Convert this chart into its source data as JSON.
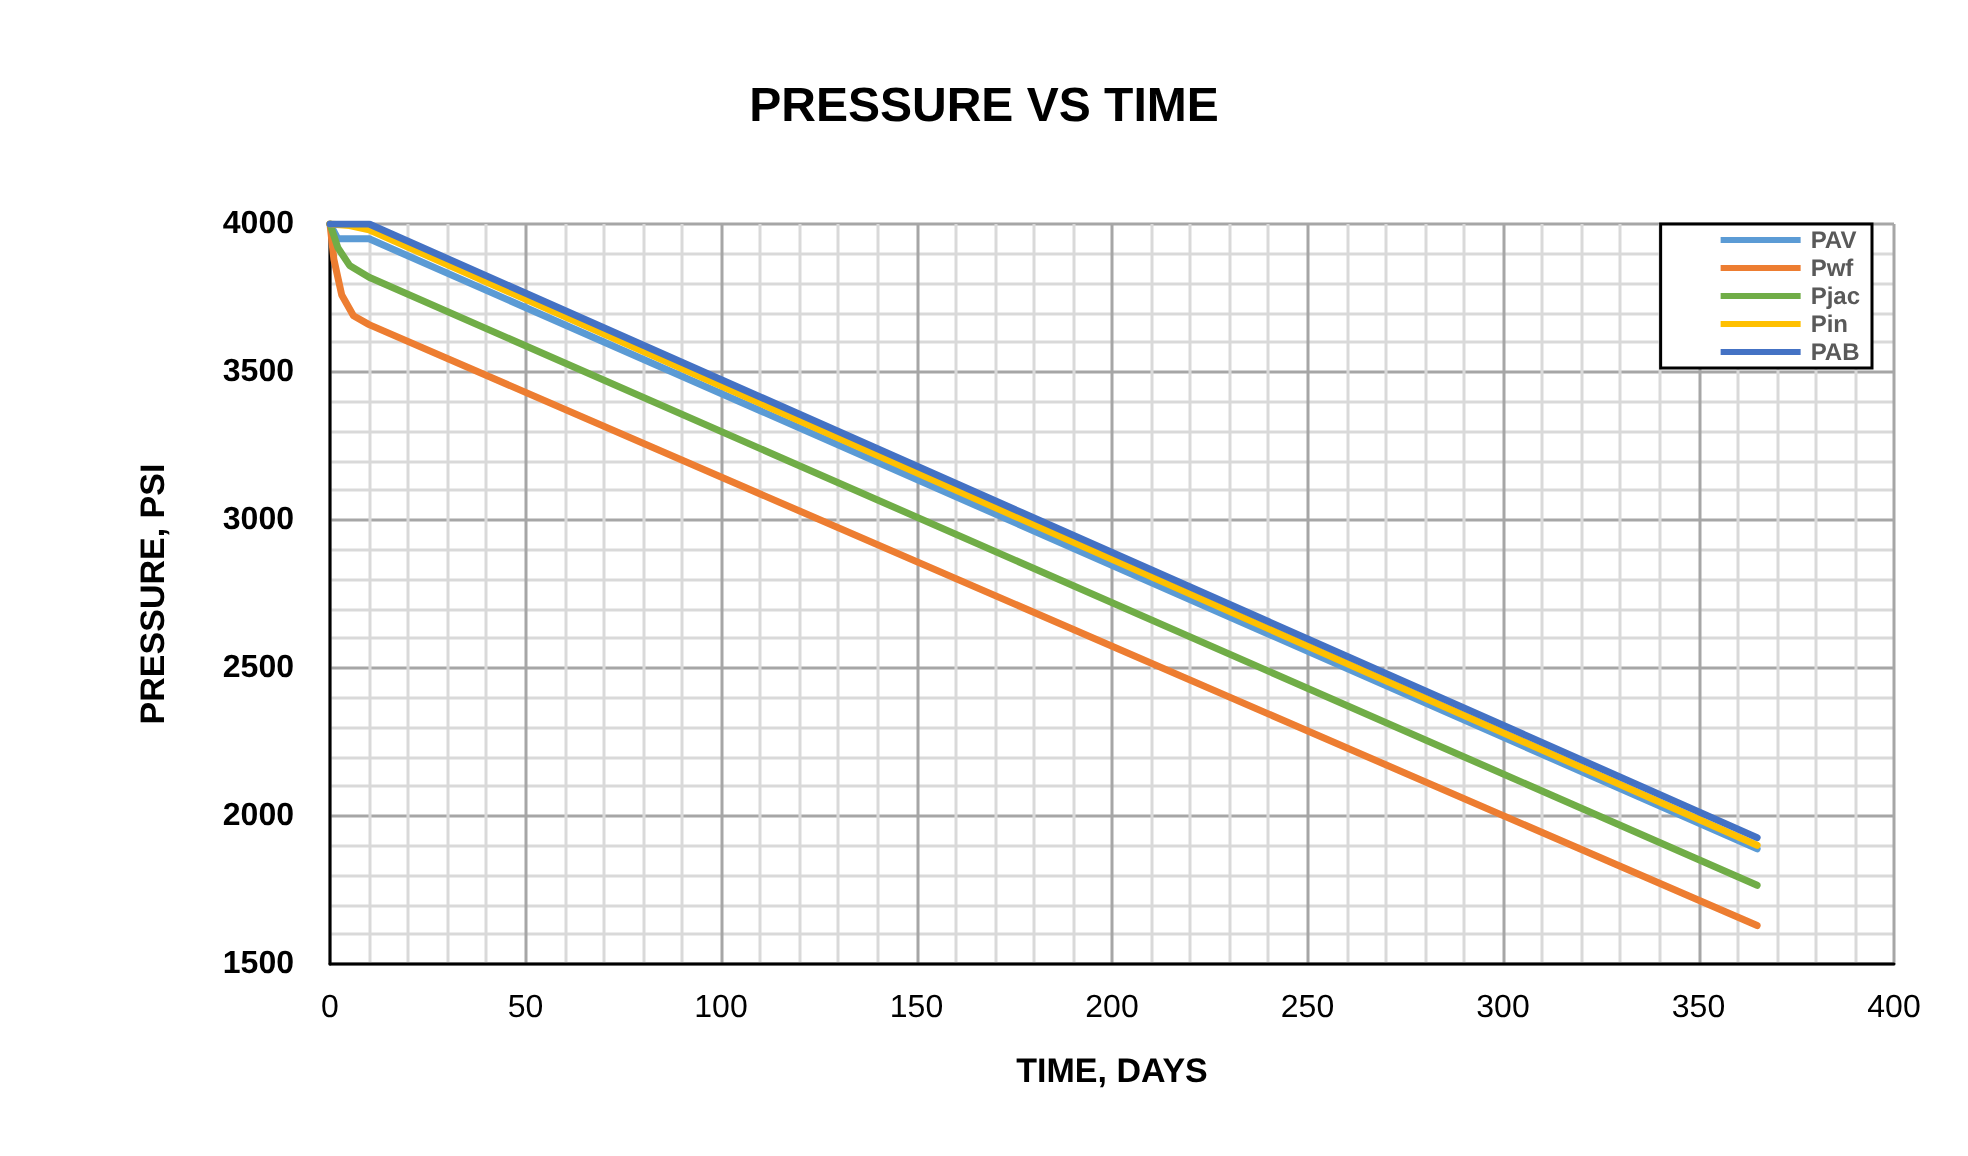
{
  "chart_data": {
    "type": "line",
    "title": "PRESSURE VS TIME",
    "xlabel": "TIME, DAYS",
    "ylabel": "PRESSURE, PSI",
    "xlim": [
      0,
      400
    ],
    "xticks": [
      0,
      50,
      100,
      150,
      200,
      250,
      300,
      350,
      400
    ],
    "ylim": [
      1500,
      4000
    ],
    "yticks": [
      1500,
      2000,
      2500,
      3000,
      3500,
      4000
    ],
    "grid": true,
    "legend": "top right",
    "marker": "none",
    "line_style": "solid",
    "series": [
      {
        "name": "PAV",
        "color": "#5b9bd5",
        "x": [
          0,
          2,
          10,
          365
        ],
        "values": [
          4000,
          3950,
          3950,
          1889
        ]
      },
      {
        "name": "Pwf",
        "color": "#ed7d31",
        "x": [
          0,
          1,
          3,
          6,
          10,
          365
        ],
        "values": [
          4000,
          3880,
          3760,
          3690,
          3660,
          1630
        ]
      },
      {
        "name": "Pjac",
        "color": "#70ad47",
        "x": [
          0,
          2,
          5,
          10,
          365
        ],
        "values": [
          4000,
          3920,
          3860,
          3820,
          1766
        ]
      },
      {
        "name": "Pin",
        "color": "#ffc000",
        "x": [
          0,
          5,
          10,
          365
        ],
        "values": [
          4000,
          3995,
          3980,
          1901
        ]
      },
      {
        "name": "PAB",
        "color": "#4472c4",
        "x": [
          0,
          10,
          365
        ],
        "values": [
          4000,
          4000,
          1927
        ]
      }
    ]
  }
}
